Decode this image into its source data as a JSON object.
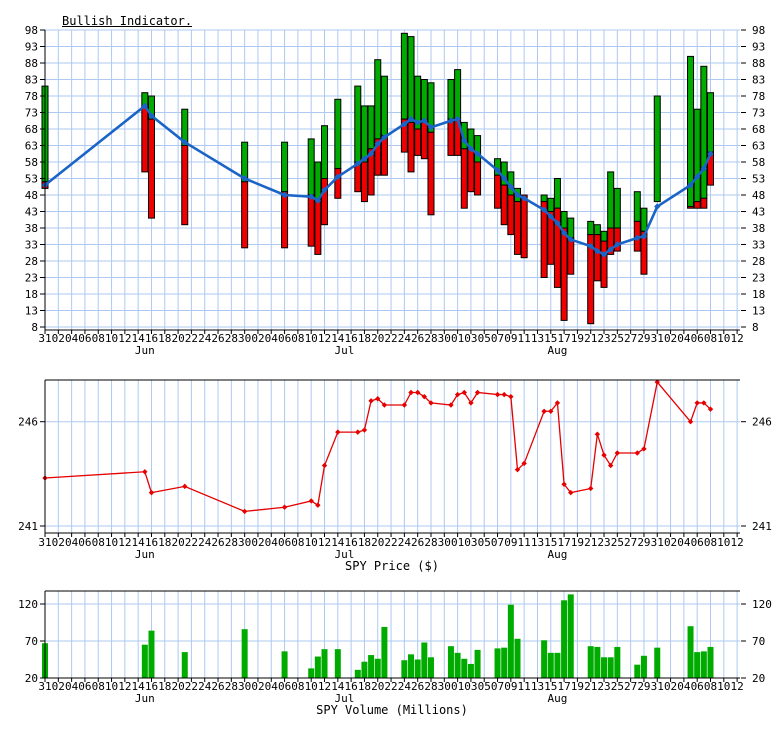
{
  "titles": {
    "indicator": "Bullish Indicator.",
    "price": "SPY Price ($)",
    "volume": "SPY Volume (Millions)"
  },
  "colors": {
    "grid": "#aec9f2",
    "bar_up": "#00ab00",
    "bar_down": "#ee0000",
    "bar_outline": "#000000",
    "ma_line": "#1a64c8",
    "price_line": "#e60000",
    "volume_bar": "#00ab00",
    "axis": "#000000",
    "text": "#000000",
    "background": "#ffffff"
  },
  "axis": {
    "x_tick_labels": [
      "31",
      "02",
      "04",
      "06",
      "08",
      "10",
      "12",
      "14",
      "16",
      "18",
      "20",
      "22",
      "24",
      "26",
      "28",
      "30",
      "02",
      "04",
      "06",
      "08",
      "10",
      "12",
      "14",
      "16",
      "18",
      "20",
      "22",
      "24",
      "26",
      "28",
      "30",
      "01",
      "03",
      "05",
      "07",
      "09",
      "11",
      "13",
      "15",
      "17",
      "19",
      "21",
      "23",
      "25",
      "27",
      "29",
      "31",
      "02",
      "04",
      "06",
      "08",
      "10",
      "12"
    ],
    "x_month_labels": [
      {
        "label": "Jun",
        "d": 15
      },
      {
        "label": "Jul",
        "d": 45
      },
      {
        "label": "Aug",
        "d": 77
      }
    ],
    "d_max": 106
  },
  "chart_data": {
    "x_dates": [
      "May 31",
      "Jun 15",
      "Jun 16",
      "Jun 21",
      "Jun 30",
      "Jul 06",
      "Jul 10",
      "Jul 11",
      "Jul 12",
      "Jul 14",
      "Jul 17",
      "Jul 18",
      "Jul 19",
      "Jul 20",
      "Jul 21",
      "Jul 24",
      "Jul 25",
      "Jul 26",
      "Jul 27",
      "Jul 28",
      "Jul 31",
      "Aug 01",
      "Aug 02",
      "Aug 03",
      "Aug 04",
      "Aug 07",
      "Aug 08",
      "Aug 09",
      "Aug 10",
      "Aug 11",
      "Aug 14",
      "Aug 15",
      "Aug 16",
      "Aug 17",
      "Aug 18",
      "Aug 21",
      "Aug 22",
      "Aug 23",
      "Aug 24",
      "Aug 25",
      "Aug 28",
      "Aug 29",
      "Aug 31",
      "Sep 05",
      "Sep 06",
      "Sep 07",
      "Sep 08"
    ],
    "x_day_index": [
      0,
      15,
      16,
      21,
      30,
      36,
      40,
      41,
      42,
      44,
      47,
      48,
      49,
      50,
      51,
      54,
      55,
      56,
      57,
      58,
      61,
      62,
      63,
      64,
      65,
      68,
      69,
      70,
      71,
      72,
      75,
      76,
      77,
      78,
      79,
      82,
      83,
      84,
      85,
      86,
      89,
      90,
      92,
      97,
      98,
      99,
      100
    ],
    "charts": [
      {
        "type": "bar",
        "name": "bullish-indicator",
        "title": "Bullish Indicator.",
        "ylim": [
          8,
          98
        ],
        "yticks": [
          8,
          13,
          18,
          23,
          28,
          33,
          38,
          43,
          48,
          53,
          58,
          63,
          68,
          73,
          78,
          83,
          88,
          93,
          98
        ],
        "legend_position": "none",
        "grid": true,
        "series": [
          {
            "name": "range-high",
            "values": [
              81,
              79,
              78,
              74,
              64,
              64,
              65,
              58,
              69,
              77,
              81,
              75,
              75,
              89,
              84,
              97,
              96,
              84,
              83,
              82,
              83,
              86,
              70,
              68,
              66,
              59,
              58,
              55,
              50,
              48,
              48,
              47,
              53,
              43,
              41,
              40,
              39,
              37,
              55,
              50,
              49,
              44,
              78,
              90,
              74,
              87,
              79
            ]
          },
          {
            "name": "green-red-split",
            "values": [
              52,
              75,
              71,
              63,
              52,
              49,
              48,
              46.5,
              53,
              56,
              58,
              58,
              62,
              65,
              66,
              71,
              70,
              68,
              70,
              67,
              71,
              71,
              62,
              62,
              58,
              54,
              51,
              48,
              46,
              48,
              46,
              43,
              44,
              38,
              35,
              36,
              36,
              34,
              38,
              38,
              40,
              37,
              46,
              44.5,
              46,
              47,
              61
            ]
          },
          {
            "name": "range-low",
            "values": [
              50,
              55,
              41,
              39,
              32,
              32,
              32.5,
              30,
              39,
              47,
              49,
              46,
              48,
              54,
              54,
              61,
              55,
              60,
              59,
              42,
              60,
              60,
              44,
              49,
              48,
              44,
              39,
              36,
              30,
              29,
              23,
              27,
              20,
              10,
              24,
              9,
              22,
              20,
              30,
              31,
              31,
              24,
              46,
              44,
              44,
              44,
              51
            ]
          },
          {
            "name": "moving-average-line",
            "values": [
              51,
              75,
              72,
              64,
              53,
              48,
              47.5,
              46.3,
              49.5,
              53.5,
              57.5,
              59,
              60.5,
              63.5,
              65.5,
              69.5,
              71,
              70,
              70.5,
              68.5,
              70.5,
              71,
              64.5,
              62,
              60.5,
              55.5,
              53,
              50.5,
              48,
              47,
              43.5,
              41.5,
              39.5,
              36.5,
              34.5,
              32.5,
              31,
              30,
              31.5,
              33,
              35,
              35.5,
              44.5,
              51,
              53.5,
              56,
              60.5
            ]
          }
        ]
      },
      {
        "type": "line",
        "name": "spy-price",
        "title": "SPY Price ($)",
        "ylim": [
          240.7,
          248.0
        ],
        "yticks": [
          241,
          246
        ],
        "grid": true,
        "series": [
          {
            "name": "price",
            "values": [
              243.3,
              243.6,
              242.6,
              242.9,
              241.7,
              241.9,
              242.2,
              242.0,
              243.9,
              245.5,
              245.5,
              245.6,
              247.0,
              247.1,
              246.8,
              246.8,
              247.4,
              247.4,
              247.2,
              246.9,
              246.8,
              247.3,
              247.4,
              246.9,
              247.4,
              247.3,
              247.3,
              247.2,
              243.7,
              244.0,
              246.5,
              246.5,
              246.9,
              243.0,
              242.6,
              242.8,
              245.4,
              244.4,
              243.9,
              244.5,
              244.5,
              244.7,
              247.9,
              246.0,
              246.9,
              246.9,
              246.6
            ]
          }
        ]
      },
      {
        "type": "bar",
        "name": "spy-volume",
        "title": "SPY Volume (Millions)",
        "ylim": [
          20,
          138
        ],
        "yticks": [
          20,
          70,
          120
        ],
        "grid": true,
        "series": [
          {
            "name": "volume",
            "values": [
              67,
              65,
              84,
              55,
              86,
              56,
              33,
              49,
              59,
              59,
              31,
              42,
              51,
              46,
              89,
              44,
              52,
              45,
              68,
              48,
              63,
              54,
              46,
              39,
              58,
              60,
              61,
              119,
              73,
              null,
              71,
              54,
              54,
              125,
              133,
              63,
              62,
              48,
              48,
              62,
              38,
              50,
              61,
              90,
              55,
              56,
              62
            ]
          }
        ]
      }
    ]
  }
}
